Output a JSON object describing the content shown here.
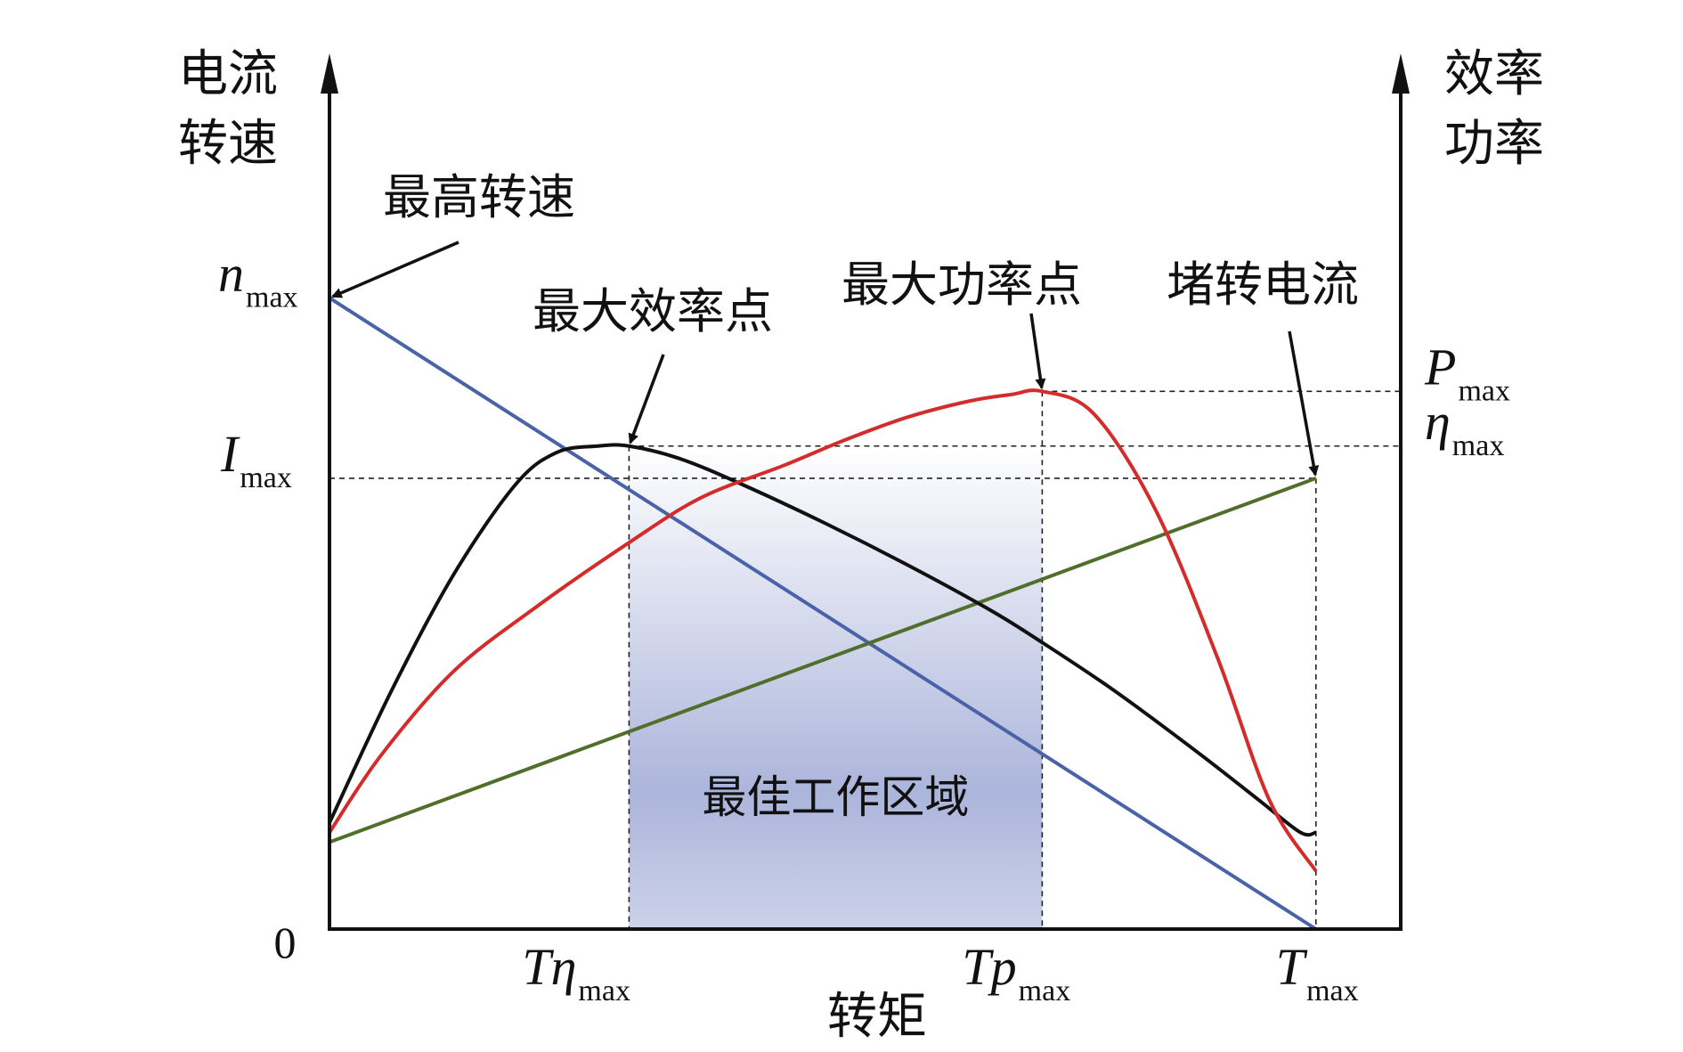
{
  "chart_data": {
    "type": "line",
    "title": "",
    "xlabel": "转矩",
    "ylabel_left": [
      "电流",
      "转速"
    ],
    "ylabel_right": [
      "效率",
      "功率"
    ],
    "xlim": [
      0,
      1
    ],
    "ylim": [
      0,
      1
    ],
    "grid": false,
    "origin_label": "0",
    "x_ticks": [
      {
        "main": "Tη",
        "sub": "max",
        "x": 0.29
      },
      {
        "main": "Tp",
        "sub": "max",
        "x": 0.69
      },
      {
        "main": "T",
        "sub": "max",
        "x": 0.955
      }
    ],
    "left_ticks": [
      {
        "main": "n",
        "sub": "max",
        "y": 0.98
      },
      {
        "main": "I",
        "sub": "max",
        "y": 0.7
      }
    ],
    "right_ticks": [
      {
        "main": "P",
        "sub": "max",
        "y": 0.835
      },
      {
        "main": "η",
        "sub": "max",
        "y": 0.75
      }
    ],
    "series": [
      {
        "key": "speed",
        "color": "#4a62a8",
        "x": [
          0,
          0.955
        ],
        "y": [
          0.98,
          0
        ]
      },
      {
        "key": "current",
        "color": "#4f6f2a",
        "x": [
          0,
          0.955
        ],
        "y": [
          0.135,
          0.7
        ]
      },
      {
        "key": "efficiency",
        "color": "#111111",
        "x": [
          0,
          0.06,
          0.12,
          0.18,
          0.22,
          0.26,
          0.29,
          0.34,
          0.4,
          0.48,
          0.56,
          0.64,
          0.69,
          0.76,
          0.84,
          0.9,
          0.94,
          0.955
        ],
        "y": [
          0.165,
          0.37,
          0.55,
          0.69,
          0.74,
          0.75,
          0.75,
          0.73,
          0.69,
          0.63,
          0.565,
          0.495,
          0.445,
          0.37,
          0.275,
          0.2,
          0.15,
          0.15
        ]
      },
      {
        "key": "power",
        "color": "#d42b2b",
        "x": [
          0,
          0.05,
          0.12,
          0.2,
          0.29,
          0.36,
          0.44,
          0.5,
          0.56,
          0.62,
          0.66,
          0.69,
          0.74,
          0.8,
          0.86,
          0.91,
          0.955
        ],
        "y": [
          0.15,
          0.27,
          0.4,
          0.5,
          0.6,
          0.67,
          0.72,
          0.76,
          0.795,
          0.82,
          0.83,
          0.835,
          0.8,
          0.65,
          0.42,
          0.2,
          0.09
        ]
      }
    ],
    "annotations": [
      {
        "text": "最高转速",
        "target": [
          0,
          0.98
        ]
      },
      {
        "text": "最大效率点",
        "target": [
          0.29,
          0.75
        ]
      },
      {
        "text": "最大功率点",
        "target": [
          0.69,
          0.835
        ]
      },
      {
        "text": "堵转电流",
        "target": [
          0.955,
          0.7
        ]
      }
    ],
    "shaded_region": {
      "label": "最佳工作区域",
      "x": [
        0.29,
        0.69
      ],
      "color_top": "#ffffff",
      "color_bottom": "#a7b1d9"
    }
  }
}
